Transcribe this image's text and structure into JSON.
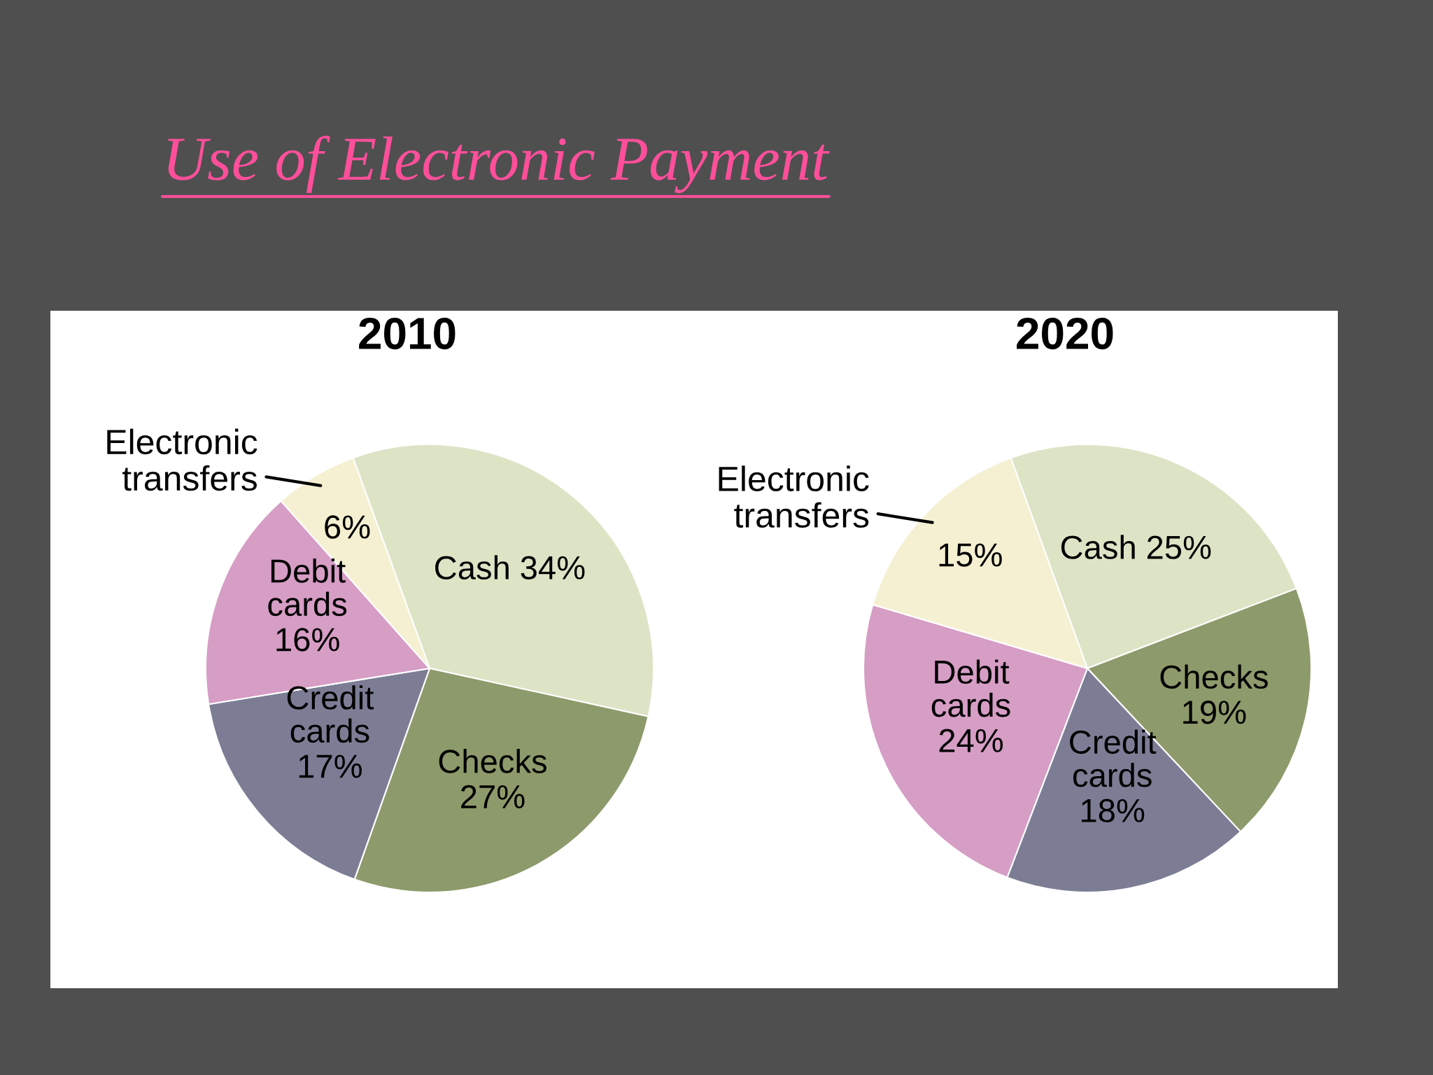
{
  "chart_data": [
    {
      "type": "other",
      "title": "Use of Electronic Payment"
    },
    {
      "type": "pie",
      "title": "2010",
      "categories": [
        "Cash",
        "Checks",
        "Credit cards",
        "Debit cards",
        "Electronic transfers"
      ],
      "values": [
        34,
        27,
        17,
        16,
        6
      ],
      "value_labels": [
        "34%",
        "27%",
        "17%",
        "16%",
        "6%"
      ],
      "colors": [
        "#dde4c6",
        "#8d9a6b",
        "#7c7d95",
        "#d69dc5",
        "#f5f0d2"
      ]
    },
    {
      "type": "pie",
      "title": "2020",
      "categories": [
        "Cash",
        "Checks",
        "Credit cards",
        "Debit cards",
        "Electronic transfers"
      ],
      "values": [
        25,
        19,
        18,
        24,
        15
      ],
      "value_labels": [
        "25%",
        "19%",
        "18%",
        "24%",
        "15%"
      ],
      "colors": [
        "#dde4c6",
        "#8d9a6b",
        "#7c7d95",
        "#d69dc5",
        "#f5f0d2"
      ]
    }
  ]
}
